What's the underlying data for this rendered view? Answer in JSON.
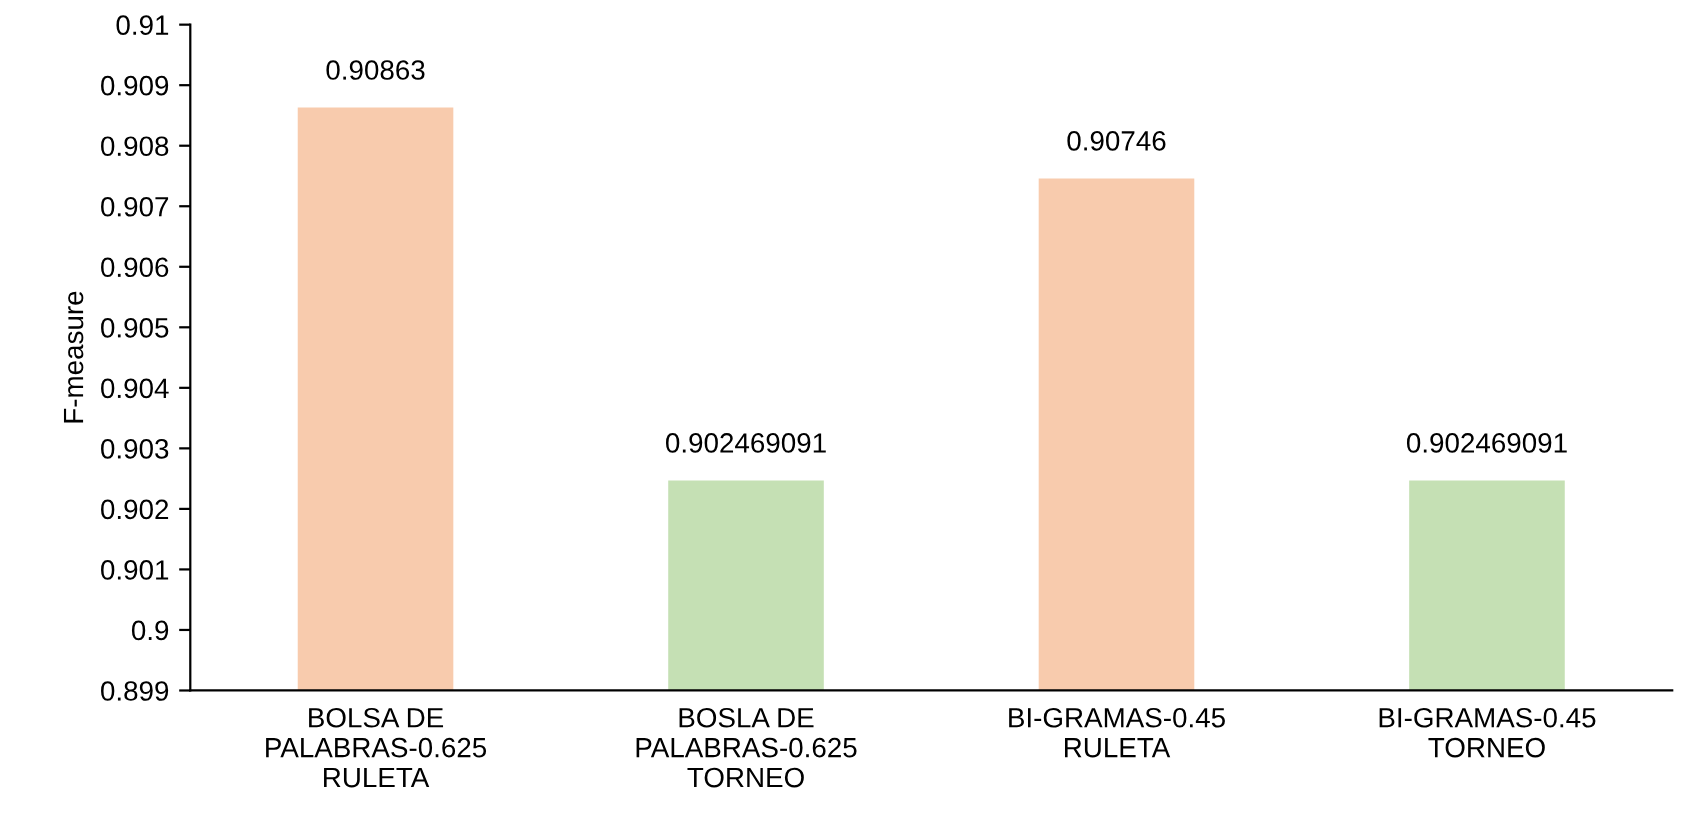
{
  "chart_data": {
    "type": "bar",
    "ylabel": "F-measure",
    "categories": [
      "BOLSA DE\nPALABRAS-0.625\nRULETA",
      "BOSLA DE\nPALABRAS-0.625\nTORNEO",
      "BI-GRAMAS-0.45\nRULETA",
      "BI-GRAMAS-0.45\nTORNEO"
    ],
    "values": [
      0.90863,
      0.902469091,
      0.90746,
      0.902469091
    ],
    "colors": [
      "#f8cbad",
      "#c5e0b4",
      "#f8cbad",
      "#c5e0b4"
    ],
    "ylim": [
      0.899,
      0.91
    ],
    "yticks": [
      0.899,
      0.9,
      0.901,
      0.902,
      0.903,
      0.904,
      0.905,
      0.906,
      0.907,
      0.908,
      0.909,
      0.91
    ],
    "data_labels": true,
    "grid": false,
    "legend": false
  }
}
